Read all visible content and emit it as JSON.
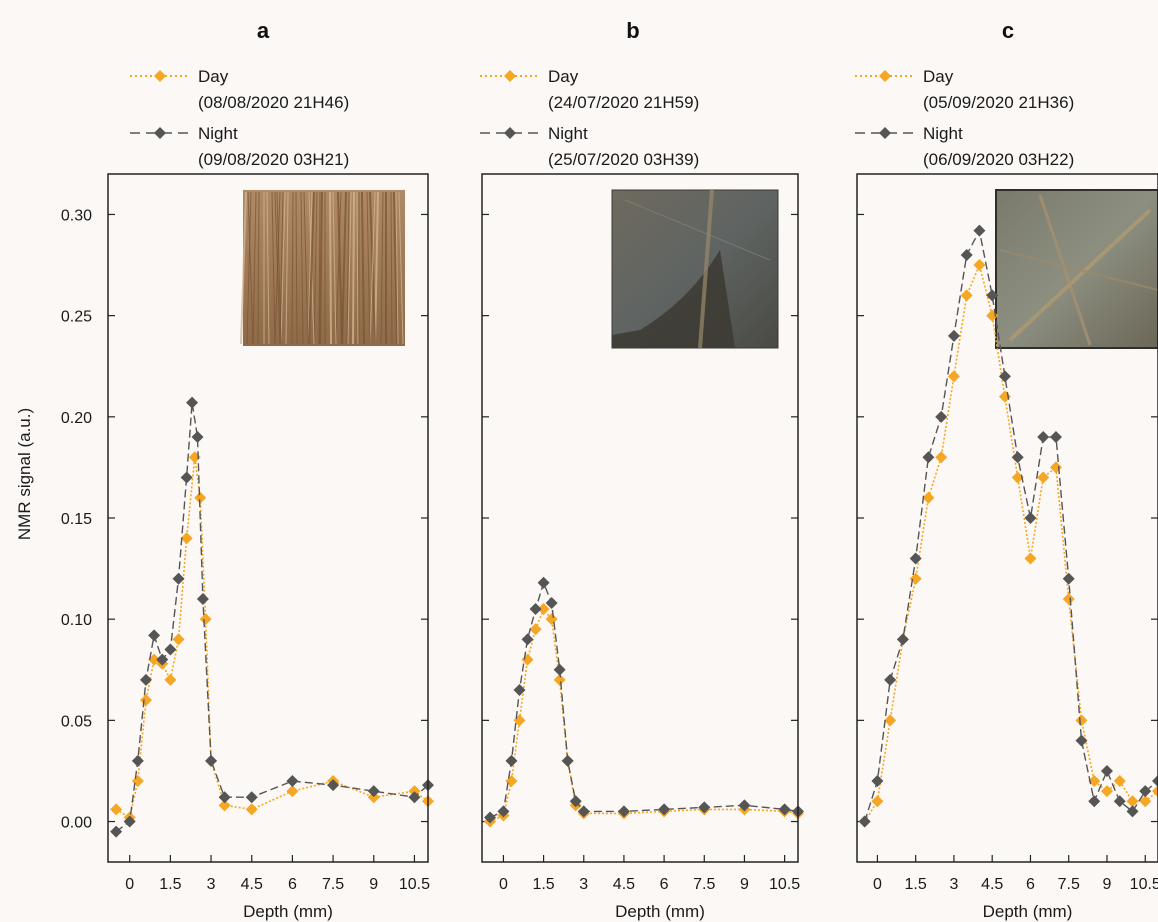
{
  "colors": {
    "day": "#f5a623",
    "night": "#555555",
    "background": "#fcf8f5",
    "axis": "#222222"
  },
  "ylabel": "NMR signal (a.u.)",
  "chart_data": [
    {
      "type": "line",
      "panel": "a",
      "xlabel": "Depth (mm)",
      "ylabel": "NMR signal (a.u.)",
      "xlim": [
        -0.8,
        11.0
      ],
      "ylim": [
        -0.02,
        0.32
      ],
      "xticks": [
        "0",
        "1.5",
        "3",
        "4.5",
        "6",
        "7.5",
        "9",
        "10.5"
      ],
      "yticks": [
        "0.00",
        "0.05",
        "0.10",
        "0.15",
        "0.20",
        "0.25",
        "0.30"
      ],
      "inset": "root-mat-photo",
      "series": [
        {
          "name": "Day",
          "sub": "(08/08/2020 21H46)",
          "style": "dotted-diamond",
          "x": [
            -0.5,
            0,
            0.3,
            0.6,
            0.9,
            1.2,
            1.5,
            1.8,
            2.1,
            2.4,
            2.6,
            2.8,
            3.0,
            3.5,
            4.5,
            6,
            7.5,
            9,
            10.5,
            11
          ],
          "y": [
            0.006,
            0.002,
            0.02,
            0.06,
            0.08,
            0.078,
            0.07,
            0.09,
            0.14,
            0.18,
            0.16,
            0.1,
            0.03,
            0.008,
            0.006,
            0.015,
            0.02,
            0.012,
            0.015,
            0.01
          ]
        },
        {
          "name": "Night",
          "sub": "(09/08/2020 03H21)",
          "style": "dashed-diamond",
          "x": [
            -0.5,
            0,
            0.3,
            0.6,
            0.9,
            1.2,
            1.5,
            1.8,
            2.1,
            2.3,
            2.5,
            2.7,
            3.0,
            3.5,
            4.5,
            6,
            7.5,
            9,
            10.5,
            11
          ],
          "y": [
            -0.005,
            0.0,
            0.03,
            0.07,
            0.092,
            0.08,
            0.085,
            0.12,
            0.17,
            0.207,
            0.19,
            0.11,
            0.03,
            0.012,
            0.012,
            0.02,
            0.018,
            0.015,
            0.012,
            0.018
          ]
        }
      ]
    },
    {
      "type": "line",
      "panel": "b",
      "xlabel": "Depth (mm)",
      "xlim": [
        -0.8,
        11.0
      ],
      "ylim": [
        -0.02,
        0.32
      ],
      "xticks": [
        "0",
        "1.5",
        "3",
        "4.5",
        "6",
        "7.5",
        "9",
        "10.5"
      ],
      "inset": "translucent-film-photo",
      "series": [
        {
          "name": "Day",
          "sub": "(24/07/2020 21H59)",
          "style": "dotted-diamond",
          "x": [
            -0.5,
            0,
            0.3,
            0.6,
            0.9,
            1.2,
            1.5,
            1.8,
            2.1,
            2.4,
            2.7,
            3.0,
            4.5,
            6,
            7.5,
            9,
            10.5,
            11
          ],
          "y": [
            0.0,
            0.003,
            0.02,
            0.05,
            0.08,
            0.095,
            0.105,
            0.1,
            0.07,
            0.03,
            0.008,
            0.004,
            0.004,
            0.005,
            0.006,
            0.006,
            0.005,
            0.004
          ]
        },
        {
          "name": "Night",
          "sub": "(25/07/2020 03H39)",
          "style": "dashed-diamond",
          "x": [
            -0.5,
            0,
            0.3,
            0.6,
            0.9,
            1.2,
            1.5,
            1.8,
            2.1,
            2.4,
            2.7,
            3.0,
            4.5,
            6,
            7.5,
            9,
            10.5,
            11
          ],
          "y": [
            0.002,
            0.005,
            0.03,
            0.065,
            0.09,
            0.105,
            0.118,
            0.108,
            0.075,
            0.03,
            0.01,
            0.005,
            0.005,
            0.006,
            0.007,
            0.008,
            0.006,
            0.005
          ]
        }
      ]
    },
    {
      "type": "line",
      "panel": "c",
      "xlabel": "Depth (mm)",
      "xlim": [
        -0.8,
        11.0
      ],
      "ylim": [
        -0.02,
        0.32
      ],
      "xticks": [
        "0",
        "1.5",
        "3",
        "4.5",
        "6",
        "7.5",
        "9",
        "10.5"
      ],
      "inset": "roots-in-film-photo",
      "series": [
        {
          "name": "Day",
          "sub": "(05/09/2020 21H36)",
          "style": "dotted-diamond",
          "x": [
            -0.5,
            0,
            0.5,
            1.0,
            1.5,
            2.0,
            2.5,
            3.0,
            3.5,
            4.0,
            4.5,
            5.0,
            5.5,
            6.0,
            6.5,
            7.0,
            7.5,
            8.0,
            8.5,
            9.0,
            9.5,
            10.0,
            10.5,
            11.0
          ],
          "y": [
            0.0,
            0.01,
            0.05,
            0.09,
            0.12,
            0.16,
            0.18,
            0.22,
            0.26,
            0.275,
            0.25,
            0.21,
            0.17,
            0.13,
            0.17,
            0.175,
            0.11,
            0.05,
            0.02,
            0.015,
            0.02,
            0.01,
            0.01,
            0.015
          ]
        },
        {
          "name": "Night",
          "sub": "(06/09/2020 03H22)",
          "style": "dashed-diamond",
          "x": [
            -0.5,
            0,
            0.5,
            1.0,
            1.5,
            2.0,
            2.5,
            3.0,
            3.5,
            4.0,
            4.5,
            5.0,
            5.5,
            6.0,
            6.5,
            7.0,
            7.5,
            8.0,
            8.5,
            9.0,
            9.5,
            10.0,
            10.5,
            11.0
          ],
          "y": [
            0.0,
            0.02,
            0.07,
            0.09,
            0.13,
            0.18,
            0.2,
            0.24,
            0.28,
            0.292,
            0.26,
            0.22,
            0.18,
            0.15,
            0.19,
            0.19,
            0.12,
            0.04,
            0.01,
            0.025,
            0.01,
            0.005,
            0.015,
            0.02
          ]
        }
      ]
    }
  ]
}
